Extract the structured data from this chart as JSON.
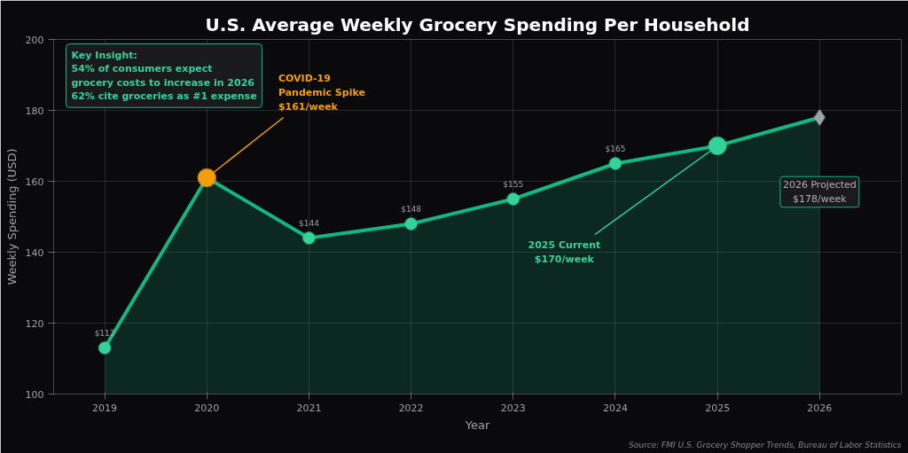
{
  "chart_data": {
    "type": "area",
    "title": "U.S. Average Weekly Grocery Spending Per Household",
    "xlabel": "Year",
    "ylabel": "Weekly Spending (USD)",
    "x": [
      2019,
      2020,
      2021,
      2022,
      2023,
      2024,
      2025,
      2026
    ],
    "series": [
      {
        "color": "#10b981",
        "values": [
          113,
          161,
          144,
          148,
          155,
          165,
          170,
          178
        ],
        "colors": [
          "#34d399",
          "#f59e0b",
          "#34d399",
          "#34d399",
          "#34d399",
          "#34d399",
          "#34d399",
          null
        ],
        "value_labels": [
          "$113",
          null,
          "$144",
          "$148",
          "$155",
          "$165",
          null,
          null
        ]
      },
      {
        "type": "scatter",
        "color": "#9ca3af",
        "marker": "diamond",
        "x": [
          2026
        ],
        "values": [
          178
        ]
      }
    ],
    "marker": "circle",
    "xlim": [
      2018.5,
      2026.8
    ],
    "xticks": [
      2019,
      2020,
      2021,
      2022,
      2023,
      2024,
      2025,
      2026
    ],
    "ylim": [
      100,
      200
    ],
    "yticks": [
      100,
      120,
      140,
      160,
      180,
      200
    ],
    "grid": true,
    "annotations": [
      "Key Insight:\n54% of consumers expect\ngrocery costs to increase in 2026\n62% cite groceries as #1 expense",
      {
        "text": "COVID-19\nPandemic Spike\n$161/week",
        "x": 2020,
        "y": 161
      },
      {
        "text": "2025 Current\n$170/week",
        "x": 2025,
        "y": 170
      },
      "2026 Projected\n$178/week",
      "Source: FMI U.S. Grocery Shopper Trends, Bureau of Labor Statistics"
    ]
  }
}
